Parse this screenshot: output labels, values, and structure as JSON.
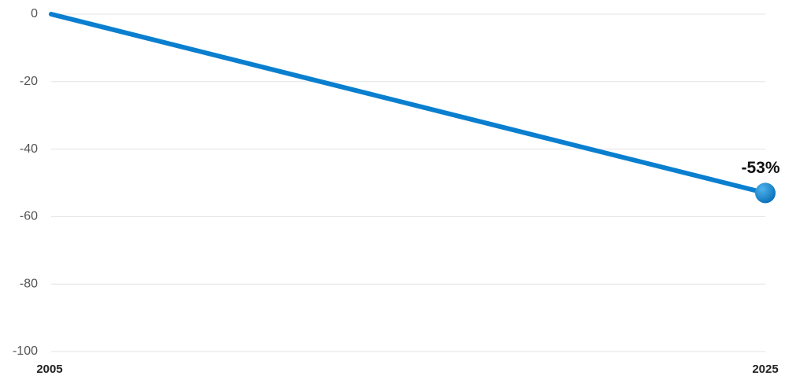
{
  "chart_data": {
    "type": "line",
    "x": [
      2005,
      2025
    ],
    "values": [
      0,
      -53
    ],
    "value_labels": [
      null,
      "-53%"
    ],
    "color": "#0a7fcf",
    "xlim": [
      2005,
      2025
    ],
    "xticks": [
      2005,
      2025
    ],
    "ylim": [
      -100,
      0
    ],
    "yticks": [
      0,
      -20,
      -40,
      -60,
      -80,
      -100
    ],
    "grid": true
  }
}
